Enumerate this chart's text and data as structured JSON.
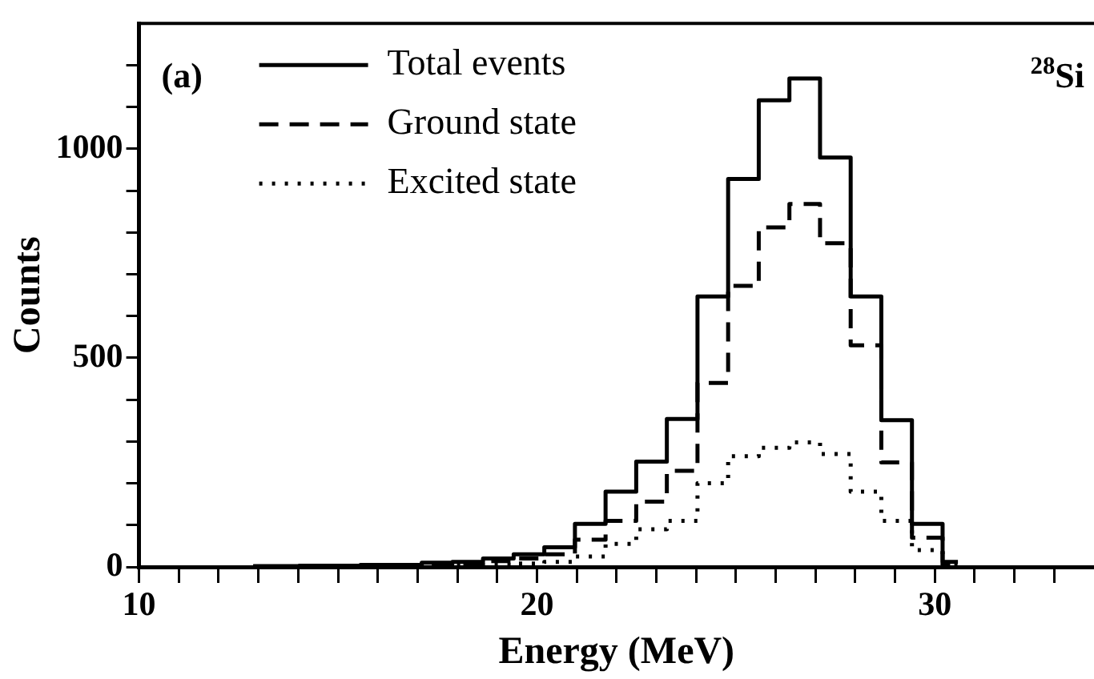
{
  "chart_data": {
    "type": "step",
    "xlabel": "Energy (MeV)",
    "ylabel": "Counts",
    "annotations": [
      "(a)",
      "$^{28}$Si"
    ],
    "x": [
      12.87,
      13.64,
      14.41,
      15.18,
      15.95,
      16.72,
      17.49,
      18.26,
      19.03,
      19.8,
      20.57,
      21.34,
      22.11,
      22.88,
      23.65,
      24.42,
      25.19,
      25.96,
      26.73,
      27.5,
      28.27,
      29.04,
      29.81,
      30.58
    ],
    "series": [
      {
        "name": "Total events",
        "color": "#000000",
        "line_style": "solid",
        "values": [
          2,
          2,
          3,
          3,
          5,
          5,
          10,
          12,
          20,
          30,
          47,
          103,
          180,
          252,
          354,
          647,
          928,
          1116,
          1168,
          979,
          647,
          351,
          103,
          12
        ]
      },
      {
        "name": "Ground state",
        "color": "#000000",
        "line_style": "dashed",
        "values": [
          1,
          1,
          2,
          2,
          3,
          3,
          7,
          8,
          14,
          20,
          30,
          65,
          110,
          156,
          230,
          440,
          672,
          812,
          868,
          774,
          530,
          250,
          70,
          8
        ]
      },
      {
        "name": "Excited state",
        "color": "#000000",
        "line_style": "dotted",
        "values": [
          0,
          0,
          0,
          0,
          1,
          1,
          2,
          3,
          5,
          8,
          12,
          25,
          55,
          90,
          110,
          200,
          265,
          285,
          298,
          270,
          180,
          110,
          40,
          5
        ]
      }
    ],
    "xlim": [
      10,
      34
    ],
    "ylim": [
      0,
      1300
    ],
    "xticks": [
      10,
      {
        "value": 11,
        "label": null
      },
      {
        "value": 12,
        "label": null
      },
      {
        "value": 13,
        "label": null
      },
      {
        "value": 14,
        "label": null
      },
      {
        "value": 15,
        "label": null
      },
      {
        "value": 16,
        "label": null
      },
      {
        "value": 17,
        "label": null
      },
      {
        "value": 18,
        "label": null
      },
      {
        "value": 19,
        "label": null
      },
      20,
      {
        "value": 21,
        "label": null
      },
      {
        "value": 22,
        "label": null
      },
      {
        "value": 23,
        "label": null
      },
      {
        "value": 24,
        "label": null
      },
      {
        "value": 25,
        "label": null
      },
      {
        "value": 26,
        "label": null
      },
      {
        "value": 27,
        "label": null
      },
      {
        "value": 28,
        "label": null
      },
      {
        "value": 29,
        "label": null
      },
      30,
      {
        "value": 31,
        "label": null
      },
      {
        "value": 32,
        "label": null
      },
      {
        "value": 33,
        "label": null
      }
    ],
    "yticks": [
      0,
      {
        "value": 100,
        "label": null
      },
      {
        "value": 200,
        "label": null
      },
      {
        "value": 300,
        "label": null
      },
      {
        "value": 400,
        "label": null
      },
      500,
      {
        "value": 600,
        "label": null
      },
      {
        "value": 700,
        "label": null
      },
      {
        "value": 800,
        "label": null
      },
      {
        "value": 900,
        "label": null
      },
      1000,
      {
        "value": 1100,
        "label": null
      },
      {
        "value": 1200,
        "label": null
      }
    ],
    "legend": "top left",
    "grid": false
  }
}
